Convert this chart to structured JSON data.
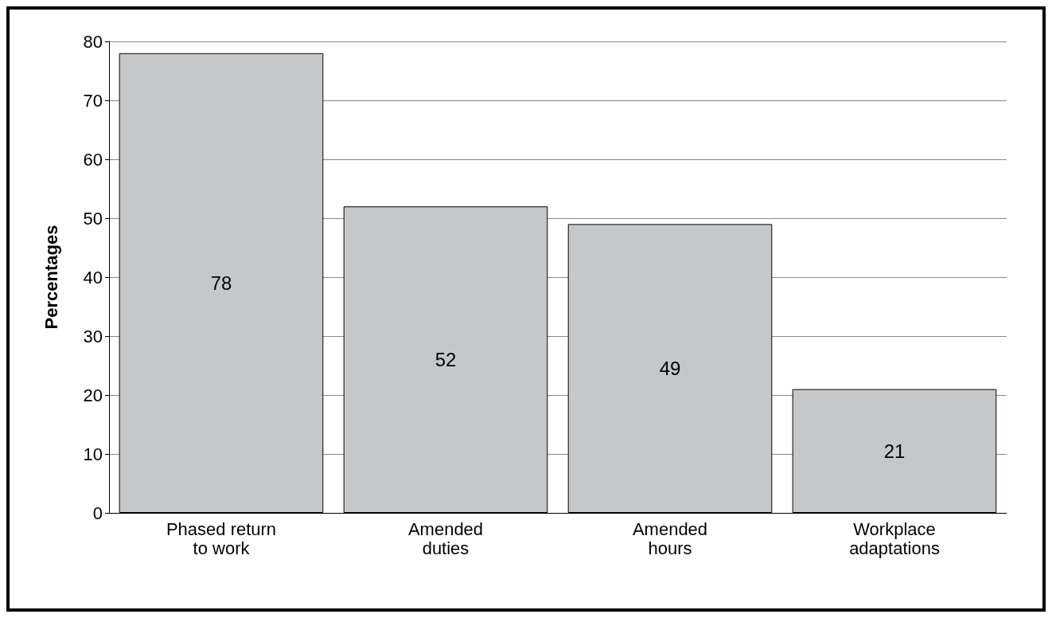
{
  "chart_data": {
    "type": "bar",
    "ylabel": "Percentages",
    "categories": [
      "Phased return\nto work",
      "Amended\nduties",
      "Amended\nhours",
      "Workplace\nadaptations"
    ],
    "values": [
      78,
      52,
      49,
      21
    ],
    "color": "#c6c7c9",
    "ylim": [
      0,
      80
    ],
    "yticks": [
      0,
      10,
      20,
      30,
      40,
      50,
      60,
      70,
      80
    ],
    "grid": "y",
    "data_labels": true
  }
}
